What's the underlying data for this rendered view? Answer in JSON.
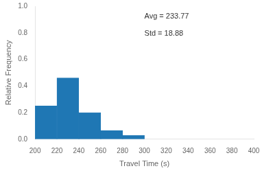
{
  "chart_data": {
    "type": "histogram",
    "bins": [
      200,
      220,
      240,
      260,
      280,
      300
    ],
    "values": [
      0.25,
      0.46,
      0.2,
      0.065,
      0.03
    ],
    "color": "#1f77b4",
    "xlabel": "Travel Time (s)",
    "ylabel": "Relative Frequency",
    "xlim": [
      200,
      400
    ],
    "ylim": [
      0,
      1.0
    ],
    "xticks": [
      200,
      220,
      240,
      260,
      280,
      300,
      320,
      340,
      360,
      380,
      400
    ],
    "yticks": [
      {
        "value": 0,
        "label": "0.0"
      },
      0.2,
      0.4,
      0.6,
      0.8,
      {
        "value": 1,
        "label": "1.0"
      }
    ],
    "annotations": [
      "Avg = 233.77",
      "Std = 18.88"
    ],
    "grid": false
  }
}
